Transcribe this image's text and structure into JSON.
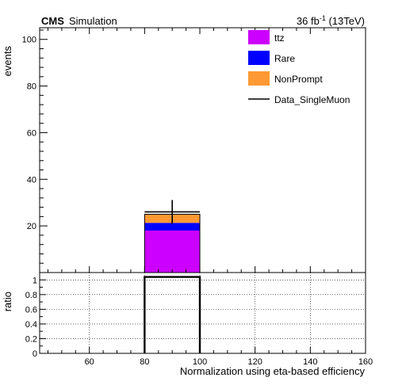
{
  "header": {
    "experiment": "CMS",
    "tag": "Simulation",
    "lumi_value": "36 fb",
    "lumi_exp": "-1",
    "lumi_energy": " (13TeV)"
  },
  "chart_data": [
    {
      "type": "bar",
      "panel": "main",
      "stacked": true,
      "ylabel": "events",
      "xlim": [
        42,
        160
      ],
      "ylim": [
        0,
        105
      ],
      "yticks": [
        20,
        40,
        60,
        80,
        100
      ],
      "bins": [
        [
          80,
          100
        ]
      ],
      "series": [
        {
          "name": "ttz",
          "values": [
            18.0
          ],
          "color": "#cc00ff"
        },
        {
          "name": "Rare",
          "values": [
            3.3
          ],
          "color": "#0000ff"
        },
        {
          "name": "NonPrompt",
          "values": [
            3.7
          ],
          "color": "#ff9933"
        }
      ],
      "data": {
        "name": "Data_SingleMuon",
        "x": [
          90
        ],
        "y": [
          26
        ],
        "yerr_low": [
          5.1
        ],
        "yerr_high": [
          5.1
        ],
        "xerr": [
          10
        ]
      },
      "legend": "top-right",
      "grid": false
    },
    {
      "type": "line",
      "panel": "ratio",
      "ylabel": "ratio",
      "xlabel": "Normalization using eta-based efficiency",
      "xlim": [
        42,
        160
      ],
      "ylim": [
        0,
        1.1
      ],
      "xticks": [
        60,
        80,
        100,
        120,
        140,
        160
      ],
      "yticks": [
        0,
        0.2,
        0.4,
        0.6,
        0.8,
        1
      ],
      "ytick_labels": [
        "0",
        "0.2",
        "0.4",
        "0.6",
        "0.8",
        "1"
      ],
      "x_edges": [
        80,
        100
      ],
      "values": [
        1.04
      ],
      "grid": true
    }
  ]
}
